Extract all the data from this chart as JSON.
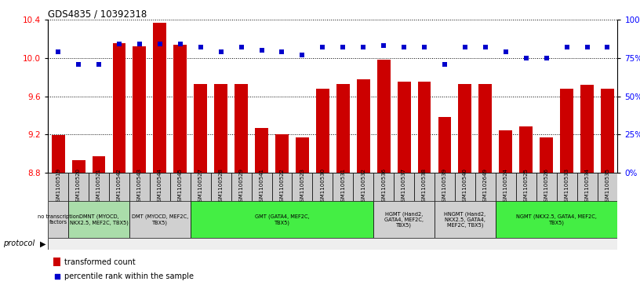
{
  "title": "GDS4835 / 10392318",
  "samples": [
    "GSM1100519",
    "GSM1100520",
    "GSM1100521",
    "GSM1100542",
    "GSM1100543",
    "GSM1100544",
    "GSM1100545",
    "GSM1100527",
    "GSM1100528",
    "GSM1100529",
    "GSM1100541",
    "GSM1100522",
    "GSM1100523",
    "GSM1100530",
    "GSM1100531",
    "GSM1100532",
    "GSM1100536",
    "GSM1100537",
    "GSM1100538",
    "GSM1100539",
    "GSM1100540",
    "GSM1102649",
    "GSM1100524",
    "GSM1100525",
    "GSM1100526",
    "GSM1100533",
    "GSM1100534",
    "GSM1100535"
  ],
  "bar_values": [
    9.19,
    8.93,
    8.97,
    10.16,
    10.12,
    10.37,
    10.14,
    9.73,
    9.73,
    9.73,
    9.27,
    9.2,
    9.17,
    9.68,
    9.73,
    9.78,
    9.98,
    9.75,
    9.75,
    9.38,
    9.73,
    9.73,
    9.24,
    9.28,
    9.17,
    9.68,
    9.72,
    9.68
  ],
  "percentile_values": [
    79,
    71,
    71,
    84,
    84,
    84,
    84,
    82,
    79,
    82,
    80,
    79,
    77,
    82,
    82,
    82,
    83,
    82,
    82,
    71,
    82,
    82,
    79,
    75,
    75,
    82,
    82,
    82
  ],
  "ylim_left": [
    8.8,
    10.4
  ],
  "ylim_right": [
    0,
    100
  ],
  "yticks_left": [
    8.8,
    9.2,
    9.6,
    10.0,
    10.4
  ],
  "yticks_right": [
    0,
    25,
    50,
    75,
    100
  ],
  "bar_color": "#cc0000",
  "dot_color": "#0000cc",
  "groups": [
    {
      "label": "no transcription\nfactors",
      "start": 0,
      "end": 1,
      "color": "#d0d0d0"
    },
    {
      "label": "DMNT (MYOCD,\nNKX2.5, MEF2C, TBX5)",
      "start": 1,
      "end": 4,
      "color": "#aaddaa"
    },
    {
      "label": "DMT (MYOCD, MEF2C,\nTBX5)",
      "start": 4,
      "end": 7,
      "color": "#d0d0d0"
    },
    {
      "label": "GMT (GATA4, MEF2C,\nTBX5)",
      "start": 7,
      "end": 16,
      "color": "#44ee44"
    },
    {
      "label": "HGMT (Hand2,\nGATA4, MEF2C,\nTBX5)",
      "start": 16,
      "end": 19,
      "color": "#d0d0d0"
    },
    {
      "label": "HNGMT (Hand2,\nNKX2.5, GATA4,\nMEF2C, TBX5)",
      "start": 19,
      "end": 22,
      "color": "#d0d0d0"
    },
    {
      "label": "NGMT (NKX2.5, GATA4, MEF2C,\nTBX5)",
      "start": 22,
      "end": 28,
      "color": "#44ee44"
    }
  ],
  "protocol_label": "protocol",
  "legend_bar_label": "transformed count",
  "legend_dot_label": "percentile rank within the sample",
  "ymin": 8.8
}
